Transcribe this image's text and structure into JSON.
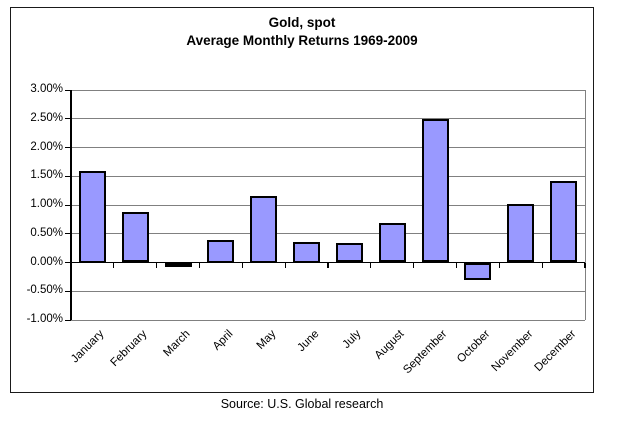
{
  "chart_data": {
    "type": "bar",
    "title": "Gold, spot",
    "subtitle": "Average Monthly Returns 1969-2009",
    "categories": [
      "January",
      "February",
      "March",
      "April",
      "May",
      "June",
      "July",
      "August",
      "September",
      "October",
      "November",
      "December"
    ],
    "values": [
      1.6,
      0.88,
      -0.05,
      0.4,
      1.15,
      0.35,
      0.34,
      0.68,
      2.49,
      -0.31,
      1.02,
      1.42
    ],
    "ylim": [
      -1.0,
      3.0
    ],
    "ytick_step": 0.5,
    "ytick_labels": [
      "3.00%",
      "2.50%",
      "2.00%",
      "1.50%",
      "1.00%",
      "0.50%",
      "0.00%",
      "-0.50%",
      "-1.00%"
    ],
    "grid": true,
    "legend": false,
    "bar_color": "#9999FF",
    "bar_border_color": "#000000",
    "gridline_color": "#808080"
  },
  "footer": {
    "source": "Source: U.S. Global research"
  }
}
